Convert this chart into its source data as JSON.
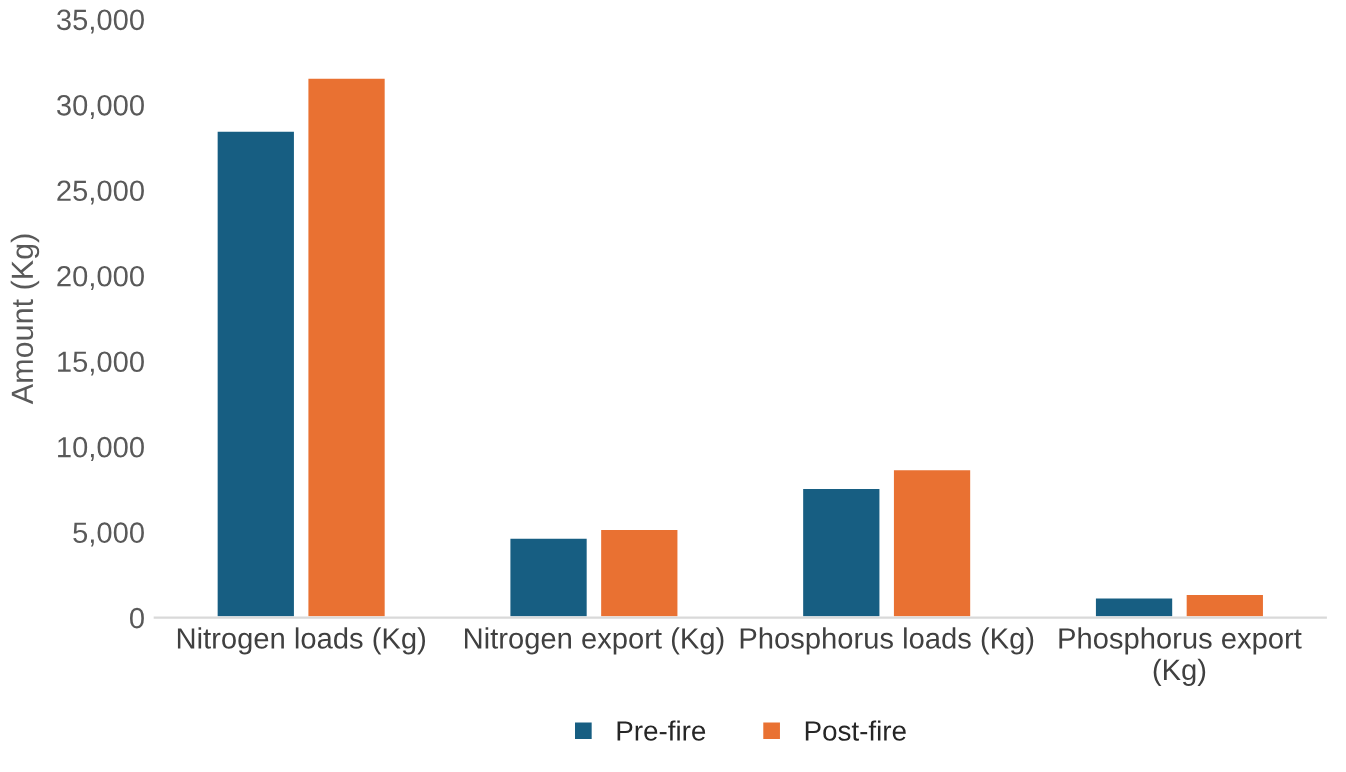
{
  "chart_data": {
    "type": "bar",
    "ylabel": "Amount (Kg)",
    "categories": [
      "Nitrogen loads (Kg)",
      "Nitrogen export (Kg)",
      "Phosphorus loads (Kg)",
      "Phosphorus export\n(Kg)"
    ],
    "series": [
      {
        "name": "Pre-fire",
        "color": "#175e82",
        "values": [
          28500,
          4700,
          7600,
          1200
        ]
      },
      {
        "name": "Post-fire",
        "color": "#e97132",
        "values": [
          31600,
          5200,
          8700,
          1400
        ]
      }
    ],
    "ylim": [
      0,
      35000
    ],
    "yticks": [
      {
        "value": 0,
        "label": "0"
      },
      {
        "value": 5000,
        "label": "5,000"
      },
      {
        "value": 10000,
        "label": "10,000"
      },
      {
        "value": 15000,
        "label": "15,000"
      },
      {
        "value": 20000,
        "label": "20,000"
      },
      {
        "value": 25000,
        "label": "25,000"
      },
      {
        "value": 30000,
        "label": "30,000"
      },
      {
        "value": 35000,
        "label": "35,000"
      }
    ],
    "grid": false,
    "legend": "bottom"
  }
}
